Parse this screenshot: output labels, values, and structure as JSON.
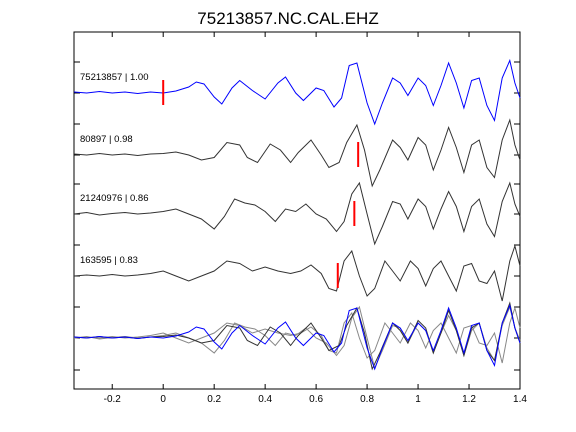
{
  "chart_data": {
    "type": "line",
    "title": "75213857.NC.CAL.EHZ",
    "xlabel": "",
    "ylabel": "",
    "xlim": [
      -0.35,
      1.4
    ],
    "x_ticks": [
      -0.2,
      0,
      0.2,
      0.4,
      0.6,
      0.8,
      1,
      1.2,
      1.4
    ],
    "x_tick_labels": [
      "-0.2",
      "0",
      "0.2",
      "0.4",
      "0.6",
      "0.8",
      "1",
      "1.2",
      "1.4"
    ],
    "grid": false,
    "colors": {
      "primary": "#0000ff",
      "trace": "#333333",
      "pick": "#ff0000",
      "overlay": "#888888"
    },
    "series": [
      {
        "label": "75213857 | 1.00",
        "color": "#0000ff",
        "pick": 0.0,
        "points": [
          [
            -0.35,
            0.02
          ],
          [
            -0.3,
            0.0
          ],
          [
            -0.25,
            0.03
          ],
          [
            -0.2,
            0.0
          ],
          [
            -0.15,
            0.02
          ],
          [
            -0.1,
            -0.01
          ],
          [
            -0.05,
            0.02
          ],
          [
            0.0,
            0.0
          ],
          [
            0.05,
            0.04
          ],
          [
            0.1,
            0.12
          ],
          [
            0.13,
            0.22
          ],
          [
            0.16,
            0.18
          ],
          [
            0.2,
            -0.08
          ],
          [
            0.23,
            -0.22
          ],
          [
            0.27,
            0.1
          ],
          [
            0.3,
            0.25
          ],
          [
            0.35,
            0.05
          ],
          [
            0.4,
            -0.12
          ],
          [
            0.45,
            0.2
          ],
          [
            0.48,
            0.32
          ],
          [
            0.52,
            0.0
          ],
          [
            0.55,
            -0.15
          ],
          [
            0.6,
            0.1
          ],
          [
            0.63,
            0.05
          ],
          [
            0.67,
            -0.28
          ],
          [
            0.7,
            -0.1
          ],
          [
            0.73,
            0.55
          ],
          [
            0.76,
            0.6
          ],
          [
            0.8,
            -0.2
          ],
          [
            0.83,
            -0.62
          ],
          [
            0.86,
            -0.2
          ],
          [
            0.9,
            0.3
          ],
          [
            0.93,
            0.2
          ],
          [
            0.96,
            -0.05
          ],
          [
            1.0,
            0.3
          ],
          [
            1.03,
            0.15
          ],
          [
            1.06,
            -0.25
          ],
          [
            1.09,
            0.15
          ],
          [
            1.12,
            0.6
          ],
          [
            1.15,
            0.2
          ],
          [
            1.18,
            -0.3
          ],
          [
            1.21,
            0.25
          ],
          [
            1.24,
            0.3
          ],
          [
            1.27,
            -0.25
          ],
          [
            1.3,
            -0.55
          ],
          [
            1.33,
            0.3
          ],
          [
            1.36,
            0.65
          ],
          [
            1.38,
            0.2
          ],
          [
            1.4,
            -0.1
          ]
        ]
      },
      {
        "label": "80897 | 0.98",
        "color": "#333333",
        "pick": 0.765,
        "points": [
          [
            -0.35,
            0.02
          ],
          [
            -0.3,
            0.0
          ],
          [
            -0.25,
            0.03
          ],
          [
            -0.2,
            0.0
          ],
          [
            -0.15,
            0.02
          ],
          [
            -0.1,
            -0.01
          ],
          [
            -0.05,
            0.02
          ],
          [
            0.0,
            0.03
          ],
          [
            0.05,
            0.06
          ],
          [
            0.1,
            0.0
          ],
          [
            0.15,
            -0.1
          ],
          [
            0.2,
            -0.05
          ],
          [
            0.25,
            0.25
          ],
          [
            0.3,
            0.2
          ],
          [
            0.33,
            -0.05
          ],
          [
            0.37,
            -0.15
          ],
          [
            0.42,
            0.22
          ],
          [
            0.46,
            0.1
          ],
          [
            0.5,
            -0.15
          ],
          [
            0.53,
            0.05
          ],
          [
            0.58,
            0.3
          ],
          [
            0.62,
            0.0
          ],
          [
            0.65,
            -0.25
          ],
          [
            0.69,
            -0.15
          ],
          [
            0.72,
            0.25
          ],
          [
            0.76,
            0.6
          ],
          [
            0.79,
            0.1
          ],
          [
            0.82,
            -0.62
          ],
          [
            0.85,
            -0.3
          ],
          [
            0.9,
            0.3
          ],
          [
            0.93,
            0.15
          ],
          [
            0.96,
            -0.1
          ],
          [
            1.0,
            0.35
          ],
          [
            1.03,
            0.2
          ],
          [
            1.06,
            -0.3
          ],
          [
            1.09,
            0.1
          ],
          [
            1.12,
            0.55
          ],
          [
            1.15,
            0.15
          ],
          [
            1.18,
            -0.35
          ],
          [
            1.21,
            0.2
          ],
          [
            1.24,
            0.3
          ],
          [
            1.27,
            -0.25
          ],
          [
            1.3,
            -0.45
          ],
          [
            1.33,
            0.3
          ],
          [
            1.36,
            0.7
          ],
          [
            1.38,
            0.2
          ],
          [
            1.4,
            -0.1
          ]
        ]
      },
      {
        "label": "21240976 | 0.86",
        "color": "#333333",
        "pick": 0.75,
        "points": [
          [
            -0.35,
            0.0
          ],
          [
            -0.3,
            0.03
          ],
          [
            -0.25,
            -0.02
          ],
          [
            -0.2,
            0.01
          ],
          [
            -0.15,
            0.03
          ],
          [
            -0.1,
            0.0
          ],
          [
            -0.05,
            0.02
          ],
          [
            0.0,
            0.05
          ],
          [
            0.05,
            0.1
          ],
          [
            0.1,
            0.0
          ],
          [
            0.15,
            -0.1
          ],
          [
            0.2,
            -0.3
          ],
          [
            0.24,
            -0.05
          ],
          [
            0.28,
            0.3
          ],
          [
            0.32,
            0.22
          ],
          [
            0.36,
            0.18
          ],
          [
            0.4,
            0.05
          ],
          [
            0.44,
            -0.15
          ],
          [
            0.48,
            0.1
          ],
          [
            0.52,
            0.05
          ],
          [
            0.56,
            0.2
          ],
          [
            0.6,
            0.0
          ],
          [
            0.64,
            -0.1
          ],
          [
            0.68,
            -0.35
          ],
          [
            0.71,
            -0.15
          ],
          [
            0.74,
            0.4
          ],
          [
            0.77,
            0.62
          ],
          [
            0.8,
            0.0
          ],
          [
            0.83,
            -0.6
          ],
          [
            0.86,
            -0.25
          ],
          [
            0.9,
            0.25
          ],
          [
            0.93,
            0.2
          ],
          [
            0.96,
            -0.1
          ],
          [
            1.0,
            0.3
          ],
          [
            1.03,
            0.15
          ],
          [
            1.06,
            -0.3
          ],
          [
            1.09,
            0.1
          ],
          [
            1.12,
            0.45
          ],
          [
            1.15,
            0.15
          ],
          [
            1.18,
            -0.35
          ],
          [
            1.21,
            0.15
          ],
          [
            1.24,
            0.3
          ],
          [
            1.27,
            -0.2
          ],
          [
            1.3,
            -0.45
          ],
          [
            1.33,
            0.25
          ],
          [
            1.36,
            0.62
          ],
          [
            1.38,
            0.2
          ],
          [
            1.4,
            -0.05
          ]
        ]
      },
      {
        "label": "163595 | 0.83",
        "color": "#333333",
        "pick": 0.685,
        "points": [
          [
            -0.35,
            0.0
          ],
          [
            -0.3,
            0.02
          ],
          [
            -0.25,
            0.0
          ],
          [
            -0.2,
            0.03
          ],
          [
            -0.15,
            0.0
          ],
          [
            -0.1,
            0.02
          ],
          [
            -0.05,
            0.05
          ],
          [
            0.0,
            0.1
          ],
          [
            0.05,
            0.0
          ],
          [
            0.1,
            -0.1
          ],
          [
            0.15,
            0.0
          ],
          [
            0.2,
            0.1
          ],
          [
            0.25,
            0.3
          ],
          [
            0.3,
            0.25
          ],
          [
            0.35,
            0.1
          ],
          [
            0.4,
            0.18
          ],
          [
            0.45,
            0.1
          ],
          [
            0.5,
            0.05
          ],
          [
            0.54,
            0.1
          ],
          [
            0.58,
            0.22
          ],
          [
            0.62,
            0.05
          ],
          [
            0.65,
            -0.25
          ],
          [
            0.68,
            -0.3
          ],
          [
            0.71,
            0.3
          ],
          [
            0.74,
            0.5
          ],
          [
            0.77,
            0.0
          ],
          [
            0.8,
            -0.4
          ],
          [
            0.83,
            -0.25
          ],
          [
            0.87,
            0.3
          ],
          [
            0.9,
            0.1
          ],
          [
            0.93,
            -0.1
          ],
          [
            0.97,
            0.3
          ],
          [
            1.0,
            0.15
          ],
          [
            1.03,
            -0.2
          ],
          [
            1.06,
            0.15
          ],
          [
            1.09,
            0.3
          ],
          [
            1.12,
            0.0
          ],
          [
            1.15,
            -0.3
          ],
          [
            1.18,
            0.2
          ],
          [
            1.21,
            0.25
          ],
          [
            1.24,
            -0.1
          ],
          [
            1.27,
            -0.15
          ],
          [
            1.3,
            0.1
          ],
          [
            1.33,
            -0.5
          ],
          [
            1.36,
            0.3
          ],
          [
            1.38,
            0.6
          ],
          [
            1.4,
            0.2
          ]
        ]
      }
    ]
  }
}
